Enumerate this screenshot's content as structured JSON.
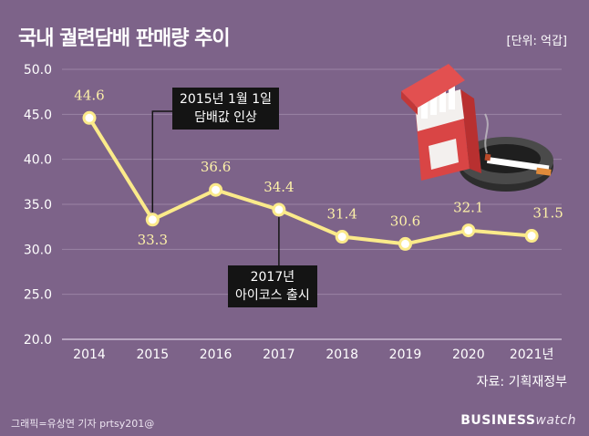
{
  "header": {
    "title": "국내 궐련담배 판매량 추이",
    "unit": "[단위: 억갑]"
  },
  "footer": {
    "source": "자료: 기획재정부",
    "credit": "그래픽=유상연 기자 prtsy201@",
    "brand_bold": "BUSINESS",
    "brand_light": "watch"
  },
  "callouts": [
    {
      "line1": "2015년 1월 1일",
      "line2": "담배값 인상"
    },
    {
      "line1": "2017년",
      "line2": "아이코스 출시"
    }
  ],
  "chart_data": {
    "type": "line",
    "title": "국내 궐련담배 판매량 추이",
    "x": [
      "2014",
      "2015",
      "2016",
      "2017",
      "2018",
      "2019",
      "2020",
      "2021년"
    ],
    "values": [
      44.6,
      33.3,
      36.6,
      34.4,
      31.4,
      30.6,
      32.1,
      31.5
    ],
    "data_labels": [
      "44.6",
      "33.3",
      "36.6",
      "34.4",
      "31.4",
      "30.6",
      "32.1",
      "31.5"
    ],
    "ylim": [
      20.0,
      50.0
    ],
    "yticks": [
      "20.0",
      "25.0",
      "30.0",
      "35.0",
      "40.0",
      "45.0",
      "50.0"
    ],
    "ytick_values": [
      20,
      25,
      30,
      35,
      40,
      45,
      50
    ],
    "grid": true,
    "line_color": "#fbea8a",
    "marker_fill": "#ffffff",
    "grid_color": "#9a83a5"
  }
}
